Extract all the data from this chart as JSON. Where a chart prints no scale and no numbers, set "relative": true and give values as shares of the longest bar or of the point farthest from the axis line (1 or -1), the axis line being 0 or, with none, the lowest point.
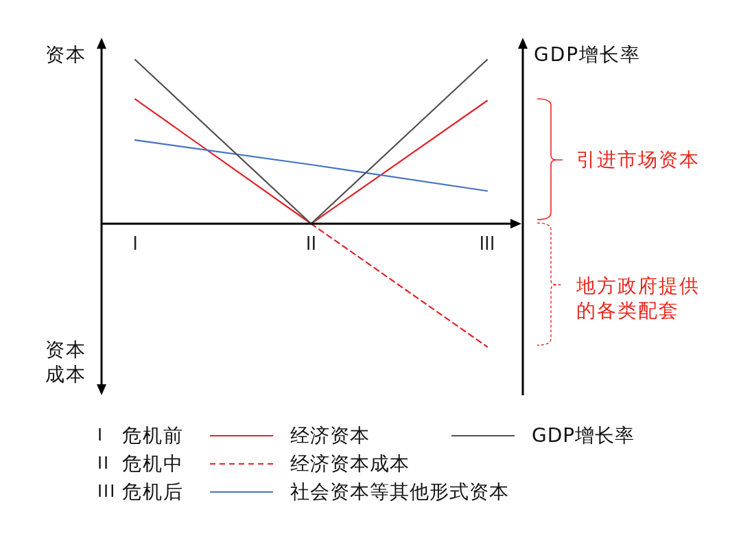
{
  "chart_data": {
    "type": "line",
    "relative": true,
    "categories": [
      "I",
      "II",
      "III"
    ],
    "series": [
      {
        "name": "经济资本",
        "color": "#e0232a",
        "values": [
          0.76,
          0,
          0.75
        ]
      },
      {
        "name": "经济资本成本",
        "color": "#e0232a",
        "line_style": "dashed",
        "values": [
          null,
          0,
          -0.75
        ]
      },
      {
        "name": "社会资本等其他形式资本",
        "color": "#4472c4",
        "values": [
          0.51,
          0.36,
          0.2
        ]
      },
      {
        "name": "GDP增长率",
        "color": "#505050",
        "values": [
          1,
          0,
          1
        ]
      }
    ],
    "ylabel": "资本",
    "y2label": "GDP增长率",
    "annotations": [
      "资本成本",
      "引进市场资本",
      "地方政府提供的各类配套",
      "I 危机前",
      "II 危机中",
      "III 危机后"
    ],
    "legend": "bottom"
  }
}
